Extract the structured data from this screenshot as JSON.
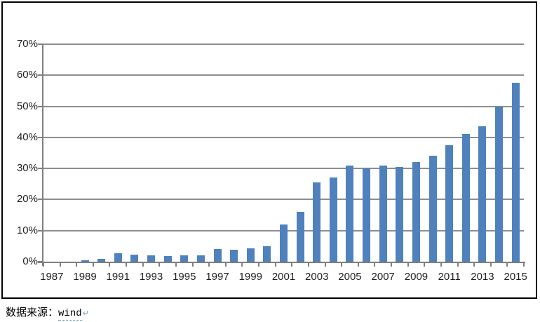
{
  "chart_data": {
    "type": "bar",
    "categories": [
      "1987",
      "1988",
      "1989",
      "1990",
      "1991",
      "1992",
      "1993",
      "1994",
      "1995",
      "1996",
      "1997",
      "1998",
      "1999",
      "2000",
      "2001",
      "2002",
      "2003",
      "2004",
      "2005",
      "2006",
      "2007",
      "2008",
      "2009",
      "2010",
      "2011",
      "2012",
      "2013",
      "2014",
      "2015"
    ],
    "values": [
      0,
      0.1,
      0.5,
      1.0,
      2.8,
      2.3,
      2.0,
      1.9,
      2.0,
      2.1,
      4.0,
      3.8,
      4.2,
      5.0,
      12.0,
      16.0,
      25.5,
      27.0,
      31.0,
      30.0,
      31.0,
      30.5,
      32.0,
      34.0,
      37.5,
      41.0,
      43.5,
      50.0,
      57.5
    ],
    "title": "",
    "xlabel": "",
    "ylabel": "",
    "ylim": [
      0,
      70
    ],
    "ytick_step": 10,
    "ytick_labels": [
      "0%",
      "10%",
      "20%",
      "30%",
      "40%",
      "50%",
      "60%",
      "70%"
    ],
    "xtick_labels_shown": [
      "1987",
      "1989",
      "1991",
      "1993",
      "1995",
      "1997",
      "1999",
      "2001",
      "2003",
      "2005",
      "2007",
      "2009",
      "2011",
      "2013",
      "2015"
    ],
    "xtick_label_every": 2,
    "grid": true,
    "legend_position": "none",
    "bar_color": "#4F81BD",
    "gridline_color": "#8E8E8E",
    "axis_color": "#7F7F7F",
    "frame_border_color": "#000000",
    "background_color": "#FFFFFF"
  },
  "caption": {
    "source_label": "数据来源：",
    "source_value": "wind",
    "return_mark": "↵"
  }
}
